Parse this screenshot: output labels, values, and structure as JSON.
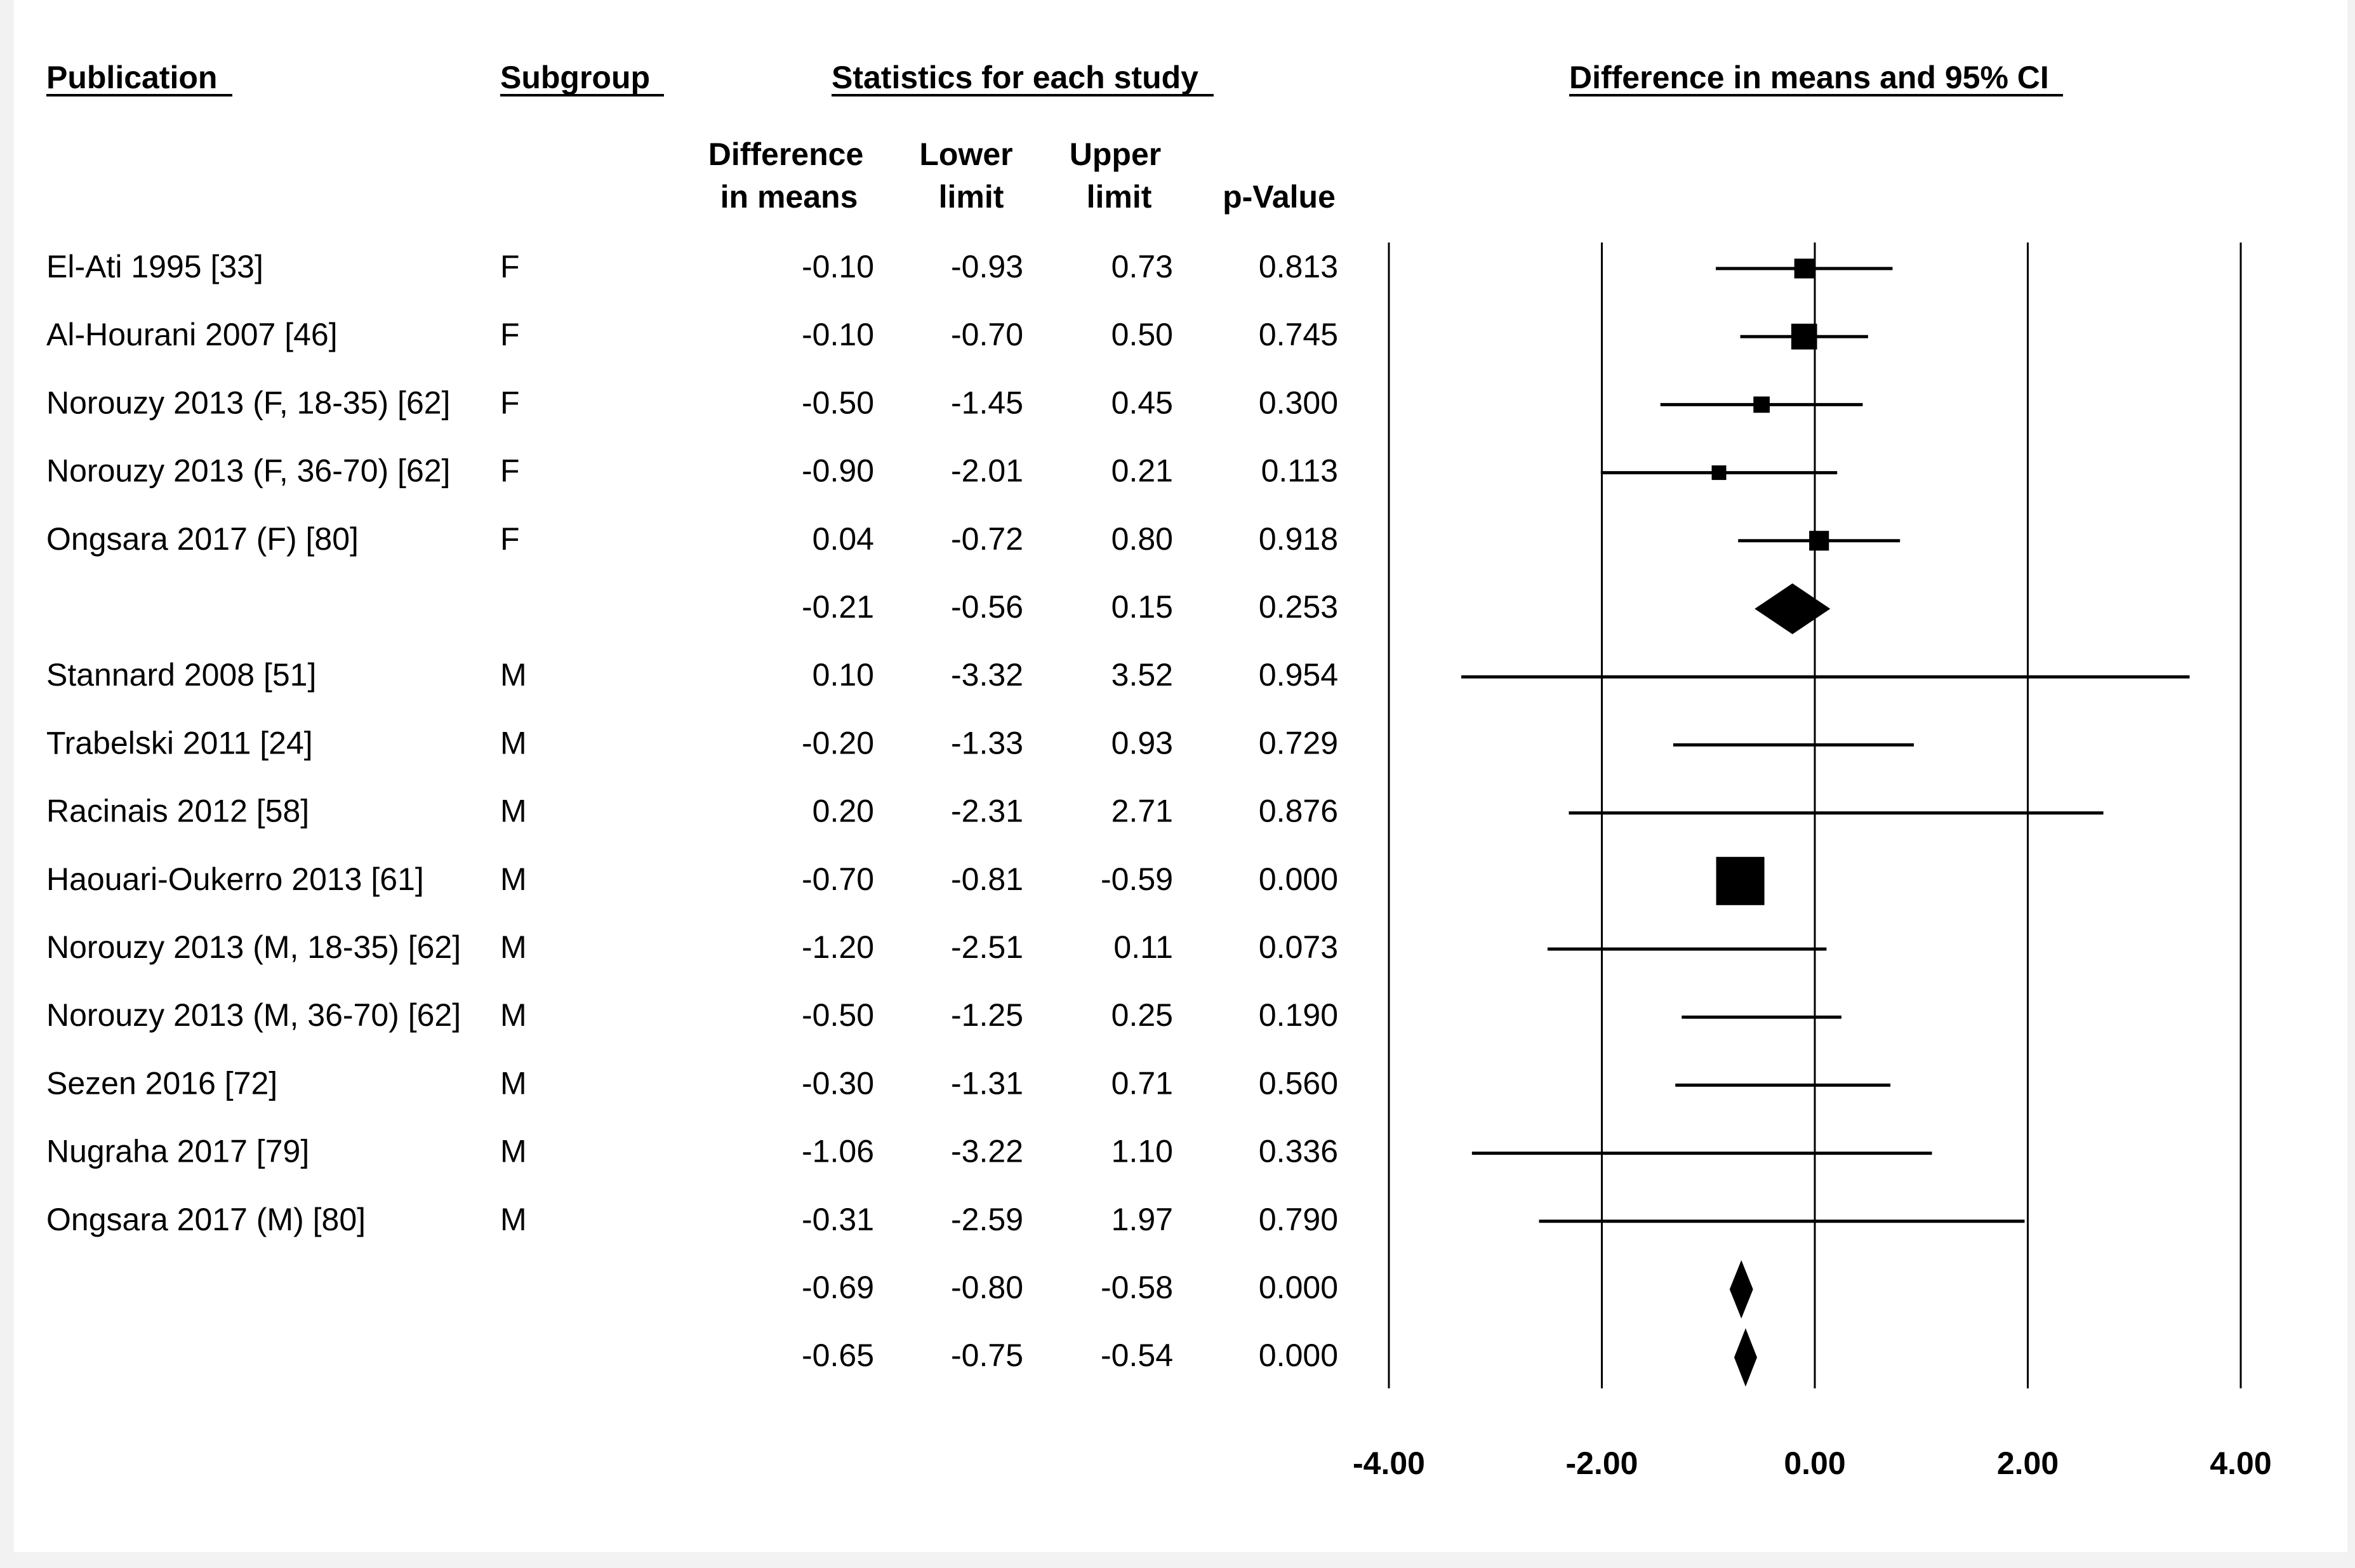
{
  "headers": {
    "publication": "Publication",
    "subgroup": "Subgroup",
    "statistics": "Statistics for each study",
    "plot_title": "Difference in means and 95% CI",
    "diff_line1": "Difference",
    "diff_line2": "in means",
    "lower_line1": "Lower",
    "lower_line2": "limit",
    "upper_line1": "Upper",
    "upper_line2": "limit",
    "pvalue": "p-Value"
  },
  "rows": [
    {
      "publication": "El-Ati 1995 [33]",
      "subgroup": "F",
      "diff": "-0.10",
      "lower": "-0.93",
      "upper": "0.73",
      "p": "0.813",
      "kind": "study",
      "weight": 0.34
    },
    {
      "publication": "Al-Hourani 2007 [46]",
      "subgroup": "F",
      "diff": "-0.10",
      "lower": "-0.70",
      "upper": "0.50",
      "p": "0.745",
      "kind": "study",
      "weight": 0.48
    },
    {
      "publication": "Norouzy 2013 (F,  18-35) [62]",
      "subgroup": "F",
      "diff": "-0.50",
      "lower": "-1.45",
      "upper": "0.45",
      "p": "0.300",
      "kind": "study",
      "weight": 0.26
    },
    {
      "publication": "Norouzy 2013 (F,  36-70) [62]",
      "subgroup": "F",
      "diff": "-0.90",
      "lower": "-2.01",
      "upper": "0.21",
      "p": "0.113",
      "kind": "study",
      "weight": 0.22
    },
    {
      "publication": "Ongsara 2017 (F) [80]",
      "subgroup": "F",
      "diff": "0.04",
      "lower": "-0.72",
      "upper": "0.80",
      "p": "0.918",
      "kind": "study",
      "weight": 0.34
    },
    {
      "publication": "",
      "subgroup": "",
      "diff": "-0.21",
      "lower": "-0.56",
      "upper": "0.15",
      "p": "0.253",
      "kind": "summary"
    },
    {
      "publication": "Stannard 2008 [51]",
      "subgroup": "M",
      "diff": "0.10",
      "lower": "-3.32",
      "upper": "3.52",
      "p": "0.954",
      "kind": "study",
      "weight": 0.0
    },
    {
      "publication": "Trabelski 2011 [24]",
      "subgroup": "M",
      "diff": "-0.20",
      "lower": "-1.33",
      "upper": "0.93",
      "p": "0.729",
      "kind": "study",
      "weight": 0.0
    },
    {
      "publication": "Racinais 2012 [58]",
      "subgroup": "M",
      "diff": "0.20",
      "lower": "-2.31",
      "upper": "2.71",
      "p": "0.876",
      "kind": "study",
      "weight": 0.0
    },
    {
      "publication": "Haouari-Oukerro 2013 [61]",
      "subgroup": "M",
      "diff": "-0.70",
      "lower": "-0.81",
      "upper": "-0.59",
      "p": "0.000",
      "kind": "study",
      "weight": 1.0
    },
    {
      "publication": "Norouzy 2013 (M,  18-35) [62]",
      "subgroup": "M",
      "diff": "-1.20",
      "lower": "-2.51",
      "upper": "0.11",
      "p": "0.073",
      "kind": "study",
      "weight": 0.0
    },
    {
      "publication": "Norouzy 2013 (M,  36-70) [62]",
      "subgroup": "M",
      "diff": "-0.50",
      "lower": "-1.25",
      "upper": "0.25",
      "p": "0.190",
      "kind": "study",
      "weight": 0.0
    },
    {
      "publication": "Sezen 2016 [72]",
      "subgroup": "M",
      "diff": "-0.30",
      "lower": "-1.31",
      "upper": "0.71",
      "p": "0.560",
      "kind": "study",
      "weight": 0.0
    },
    {
      "publication": "Nugraha 2017 [79]",
      "subgroup": "M",
      "diff": "-1.06",
      "lower": "-3.22",
      "upper": "1.10",
      "p": "0.336",
      "kind": "study",
      "weight": 0.0
    },
    {
      "publication": "Ongsara 2017 (M) [80]",
      "subgroup": "M",
      "diff": "-0.31",
      "lower": "-2.59",
      "upper": "1.97",
      "p": "0.790",
      "kind": "study",
      "weight": 0.0
    },
    {
      "publication": "",
      "subgroup": "",
      "diff": "-0.69",
      "lower": "-0.80",
      "upper": "-0.58",
      "p": "0.000",
      "kind": "summary"
    },
    {
      "publication": "",
      "subgroup": "",
      "diff": "-0.65",
      "lower": "-0.75",
      "upper": "-0.54",
      "p": "0.000",
      "kind": "summary"
    }
  ],
  "chart_data": {
    "type": "forest",
    "title": "Difference in means and 95% CI",
    "xlabel": "",
    "ylabel": "",
    "xlim": [
      -4,
      4
    ],
    "xticks": [
      -4,
      -2,
      0,
      2,
      4
    ],
    "xtick_labels": [
      "-4.00",
      "-2.00",
      "0.00",
      "2.00",
      "4.00"
    ],
    "gridlines": [
      -4,
      -2,
      0,
      2,
      4
    ],
    "series": [
      {
        "name": "Difference in means",
        "values": [
          -0.1,
          -0.1,
          -0.5,
          -0.9,
          0.04,
          -0.21,
          0.1,
          -0.2,
          0.2,
          -0.7,
          -1.2,
          -0.5,
          -0.3,
          -1.06,
          -0.31,
          -0.69,
          -0.65
        ]
      },
      {
        "name": "Lower limit",
        "values": [
          -0.93,
          -0.7,
          -1.45,
          -2.01,
          -0.72,
          -0.56,
          -3.32,
          -1.33,
          -2.31,
          -0.81,
          -2.51,
          -1.25,
          -1.31,
          -3.22,
          -2.59,
          -0.8,
          -0.75
        ]
      },
      {
        "name": "Upper limit",
        "values": [
          0.73,
          0.5,
          0.45,
          0.21,
          0.8,
          0.15,
          3.52,
          0.93,
          2.71,
          -0.59,
          0.11,
          0.25,
          0.71,
          1.1,
          1.97,
          -0.58,
          -0.54
        ]
      }
    ]
  },
  "colors": {
    "background": "#ffffff",
    "ink": "#000000",
    "page_edge": "#f2f2f2"
  }
}
